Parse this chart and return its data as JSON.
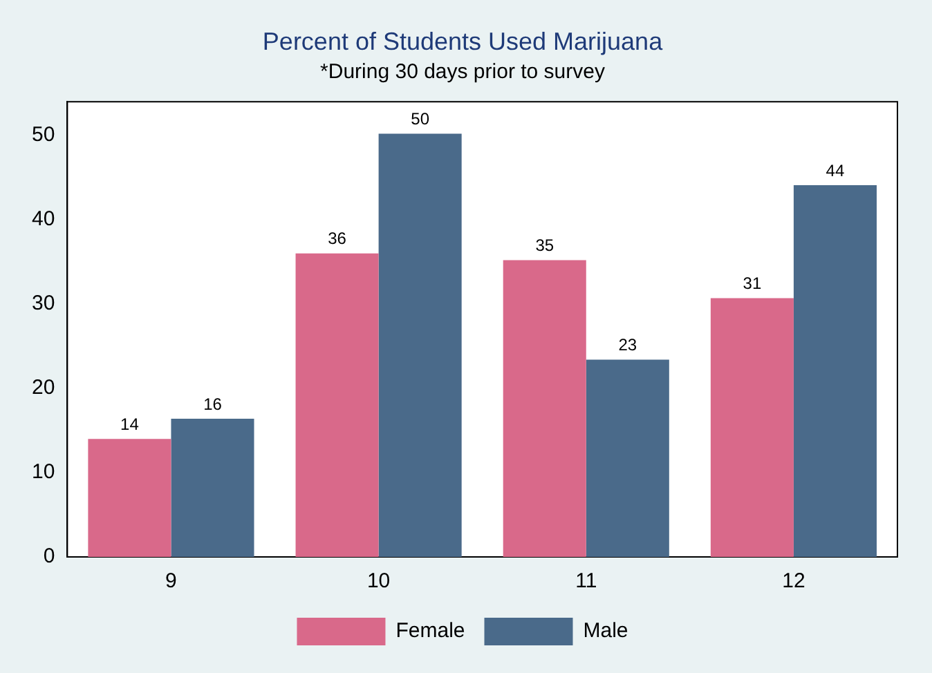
{
  "chart_data": {
    "type": "bar",
    "title": "Percent of Students Used Marijuana",
    "subtitle": "*During 30 days prior to survey",
    "categories": [
      "9",
      "10",
      "11",
      "12"
    ],
    "series": [
      {
        "name": "Female",
        "color": "#d9698a",
        "values": [
          14.0,
          36.0,
          35.2,
          30.7
        ],
        "value_labels": [
          "14",
          "36",
          "35",
          "31"
        ]
      },
      {
        "name": "Male",
        "color": "#4a6a8a",
        "values": [
          16.4,
          50.2,
          23.4,
          44.1
        ],
        "value_labels": [
          "16",
          "50",
          "23",
          "44"
        ]
      }
    ],
    "ylim": [
      0,
      54
    ],
    "yticks": [
      0,
      10,
      20,
      30,
      40,
      50
    ],
    "grid": false,
    "legend": "bottom"
  }
}
